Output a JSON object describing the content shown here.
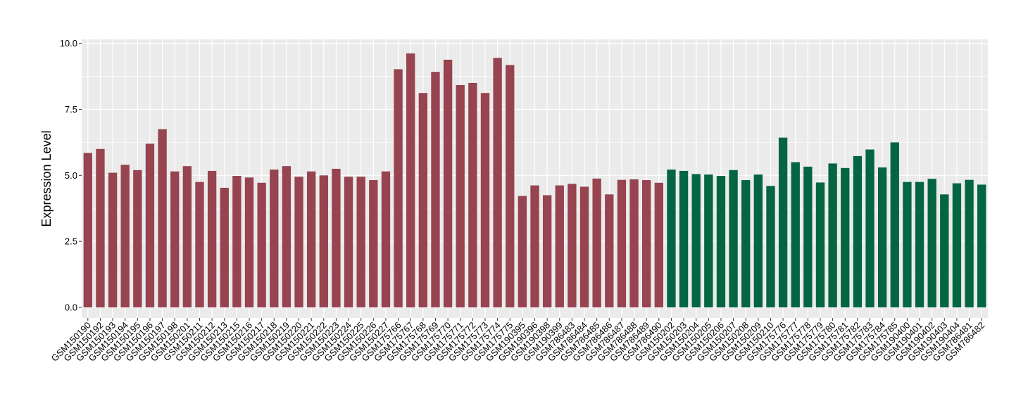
{
  "chart_data": {
    "type": "bar",
    "title": "",
    "xlabel": "",
    "ylabel": "Expression Level",
    "ylim": [
      -0.4,
      10.15
    ],
    "yticks": [
      0.0,
      2.5,
      5.0,
      7.5,
      10.0
    ],
    "ytick_labels": [
      "0.0",
      "2.5",
      "5.0",
      "7.5",
      "10.0"
    ],
    "grid": true,
    "legend": "none",
    "colors": {
      "panel_background": "#EBEBEB",
      "grid_line": "#FFFFFF",
      "group_red": "#974350",
      "group_green": "#046542"
    },
    "categories": [
      "GSM150190",
      "GSM150192",
      "GSM150193",
      "GSM150194",
      "GSM150195",
      "GSM150196",
      "GSM150197",
      "GSM150198",
      "GSM150201",
      "GSM150211",
      "GSM150212",
      "GSM150213",
      "GSM150215",
      "GSM150216",
      "GSM150217",
      "GSM150218",
      "GSM150219",
      "GSM150220",
      "GSM150221",
      "GSM150222",
      "GSM150223",
      "GSM150224",
      "GSM150225",
      "GSM150226",
      "GSM150227",
      "GSM175766",
      "GSM175767",
      "GSM175768",
      "GSM175769",
      "GSM175770",
      "GSM175771",
      "GSM175772",
      "GSM175773",
      "GSM175774",
      "GSM175775",
      "GSM190395",
      "GSM190396",
      "GSM190398",
      "GSM190399",
      "GSM786483",
      "GSM786484",
      "GSM786485",
      "GSM786486",
      "GSM786487",
      "GSM786488",
      "GSM786489",
      "GSM786490",
      "GSM150202",
      "GSM150203",
      "GSM150204",
      "GSM150205",
      "GSM150206",
      "GSM150207",
      "GSM150208",
      "GSM150209",
      "GSM150210",
      "GSM175776",
      "GSM175777",
      "GSM175778",
      "GSM175779",
      "GSM175780",
      "GSM175781",
      "GSM175782",
      "GSM175783",
      "GSM175784",
      "GSM175785",
      "GSM190400",
      "GSM190401",
      "GSM190402",
      "GSM190403",
      "GSM190404",
      "GSM786481",
      "GSM786482"
    ],
    "values": [
      5.85,
      6.0,
      5.1,
      5.4,
      5.2,
      6.2,
      6.75,
      5.15,
      5.35,
      4.75,
      5.17,
      4.53,
      4.98,
      4.92,
      4.72,
      5.22,
      5.35,
      4.95,
      5.15,
      5.0,
      5.25,
      4.95,
      4.95,
      4.82,
      5.15,
      9.02,
      9.62,
      8.12,
      8.92,
      9.38,
      8.42,
      8.5,
      8.12,
      9.45,
      9.18,
      4.22,
      4.62,
      4.25,
      4.62,
      4.68,
      4.57,
      4.88,
      4.28,
      4.83,
      4.85,
      4.82,
      4.72,
      5.22,
      5.17,
      5.05,
      5.03,
      4.98,
      5.2,
      4.82,
      5.03,
      4.6,
      6.43,
      5.5,
      5.33,
      4.73,
      5.45,
      5.28,
      5.73,
      5.98,
      5.3,
      6.25,
      4.75,
      4.75,
      4.87,
      4.28,
      4.7,
      4.83,
      4.65
    ],
    "groups": [
      "red",
      "red",
      "red",
      "red",
      "red",
      "red",
      "red",
      "red",
      "red",
      "red",
      "red",
      "red",
      "red",
      "red",
      "red",
      "red",
      "red",
      "red",
      "red",
      "red",
      "red",
      "red",
      "red",
      "red",
      "red",
      "red",
      "red",
      "red",
      "red",
      "red",
      "red",
      "red",
      "red",
      "red",
      "red",
      "red",
      "red",
      "red",
      "red",
      "red",
      "red",
      "red",
      "red",
      "red",
      "red",
      "red",
      "red",
      "green",
      "green",
      "green",
      "green",
      "green",
      "green",
      "green",
      "green",
      "green",
      "green",
      "green",
      "green",
      "green",
      "green",
      "green",
      "green",
      "green",
      "green",
      "green",
      "green",
      "green",
      "green",
      "green",
      "green",
      "green",
      "green"
    ]
  }
}
